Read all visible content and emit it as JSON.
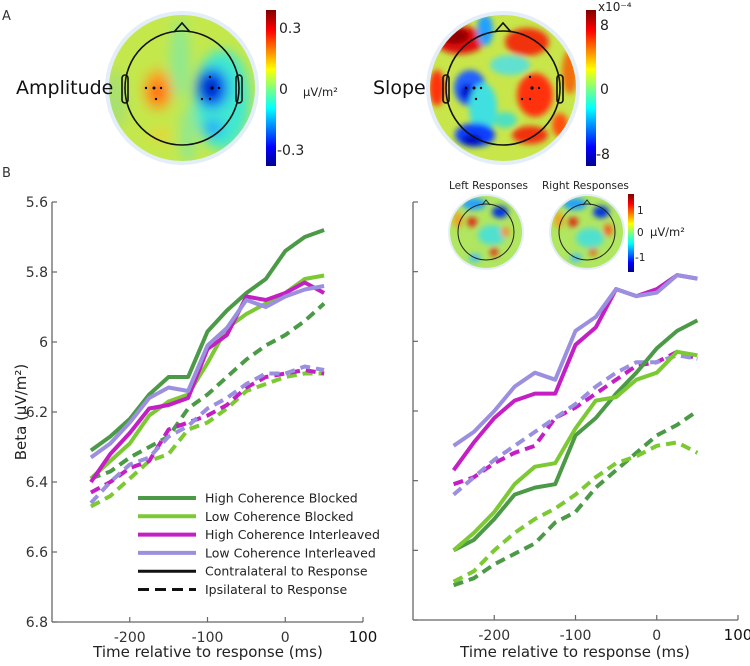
{
  "panels": {
    "a": "A",
    "b": "B"
  },
  "topomaps": [
    {
      "title": "Amplitude",
      "cbar_ticks": [
        "0.3",
        "0",
        "-0.3"
      ],
      "unit": "μV/m²",
      "exponent": ""
    },
    {
      "title": "Slope",
      "cbar_ticks": [
        "8",
        "0",
        "-8"
      ],
      "unit": "",
      "exponent": "x10⁻⁴"
    }
  ],
  "inset": {
    "left_title": "Left Responses",
    "right_title": "Right Responses",
    "cbar_ticks": [
      "1",
      "0",
      "-1"
    ],
    "unit": "μV/m²"
  },
  "colors": {
    "high_blocked": "#4c9a48",
    "low_blocked": "#7cc934",
    "high_interleaved": "#c41fc4",
    "low_interleaved": "#9a90df"
  },
  "legend": [
    {
      "label": "High Coherence Blocked",
      "color": "#4c9a48",
      "style": "solid"
    },
    {
      "label": "Low Coherence Blocked",
      "color": "#7cc934",
      "style": "solid"
    },
    {
      "label": "High Coherence Interleaved",
      "color": "#c41fc4",
      "style": "solid"
    },
    {
      "label": "Low Coherence Interleaved",
      "color": "#9a90df",
      "style": "solid"
    },
    {
      "label": "Contralateral to Response",
      "color": "#111111",
      "style": "solid"
    },
    {
      "label": "Ipsilateral to Response",
      "color": "#111111",
      "style": "dashed"
    }
  ],
  "chart_data": [
    {
      "type": "line",
      "title": "",
      "xlabel": "Time relative to response (ms)",
      "ylabel": "Beta (μV/m²)",
      "xlim": [
        -300,
        100
      ],
      "ylim": [
        6.8,
        5.6
      ],
      "y_reversed": true,
      "xticks": [
        -200,
        -100,
        0,
        100
      ],
      "yticks": [
        5.6,
        5.8,
        6,
        6.2,
        6.4,
        6.6,
        6.8
      ],
      "ytick_labels": [
        "5.6",
        "5.8",
        "6",
        "6.2",
        "6.4",
        "6.6",
        "6.8"
      ],
      "xtick_labels": [
        "-200",
        "-100",
        "0",
        "100"
      ],
      "legend_placement": "bottom-center",
      "x": [
        -250,
        -225,
        -200,
        -175,
        -150,
        -125,
        -100,
        -75,
        -50,
        -25,
        0,
        25,
        50
      ],
      "series": [
        {
          "name": "High Coherence Blocked - Contralateral",
          "color": "#4c9a48",
          "style": "solid",
          "values": [
            6.31,
            6.27,
            6.22,
            6.15,
            6.1,
            6.1,
            5.97,
            5.91,
            5.86,
            5.82,
            5.74,
            5.7,
            5.68
          ]
        },
        {
          "name": "Low Coherence Blocked - Contralateral",
          "color": "#7cc934",
          "style": "solid",
          "values": [
            6.39,
            6.34,
            6.29,
            6.21,
            6.17,
            6.15,
            6.06,
            5.96,
            5.92,
            5.89,
            5.86,
            5.82,
            5.81
          ]
        },
        {
          "name": "High Coherence Interleaved - Contralateral",
          "color": "#c41fc4",
          "style": "solid",
          "values": [
            6.4,
            6.32,
            6.26,
            6.19,
            6.18,
            6.16,
            6.02,
            5.98,
            5.87,
            5.88,
            5.86,
            5.83,
            5.86
          ]
        },
        {
          "name": "Low Coherence Interleaved - Contralateral",
          "color": "#9a90df",
          "style": "solid",
          "values": [
            6.33,
            6.29,
            6.23,
            6.16,
            6.13,
            6.14,
            6.01,
            5.96,
            5.88,
            5.9,
            5.87,
            5.85,
            5.84
          ]
        },
        {
          "name": "High Coherence Blocked - Ipsilateral",
          "color": "#4c9a48",
          "style": "dashed",
          "values": [
            6.39,
            6.37,
            6.33,
            6.3,
            6.27,
            6.19,
            6.15,
            6.1,
            6.05,
            6.01,
            5.98,
            5.94,
            5.89
          ]
        },
        {
          "name": "Low Coherence Blocked - Ipsilateral",
          "color": "#7cc934",
          "style": "dashed",
          "values": [
            6.47,
            6.44,
            6.39,
            6.34,
            6.32,
            6.25,
            6.23,
            6.19,
            6.14,
            6.12,
            6.1,
            6.09,
            6.09
          ]
        },
        {
          "name": "High Coherence Interleaved - Ipsilateral",
          "color": "#c41fc4",
          "style": "dashed",
          "values": [
            6.43,
            6.4,
            6.36,
            6.34,
            6.25,
            6.23,
            6.21,
            6.18,
            6.13,
            6.1,
            6.09,
            6.08,
            6.09
          ]
        },
        {
          "name": "Low Coherence Interleaved - Ipsilateral",
          "color": "#9a90df",
          "style": "dashed",
          "values": [
            6.46,
            6.4,
            6.35,
            6.33,
            6.27,
            6.24,
            6.19,
            6.16,
            6.12,
            6.09,
            6.09,
            6.07,
            6.08
          ]
        }
      ]
    },
    {
      "type": "line",
      "title": "",
      "xlabel": "Time relative to response (ms)",
      "ylabel": "",
      "xlim": [
        -300,
        100
      ],
      "ylim": [
        6.8,
        5.6
      ],
      "y_reversed": true,
      "xticks": [
        -200,
        -100,
        0,
        100
      ],
      "yticks": [
        5.6,
        5.8,
        6,
        6.2,
        6.4,
        6.6,
        6.8
      ],
      "ytick_labels": [],
      "xtick_labels": [
        "-200",
        "-100",
        "0",
        "100"
      ],
      "x": [
        -250,
        -225,
        -200,
        -175,
        -150,
        -125,
        -100,
        -75,
        -50,
        -25,
        0,
        25,
        50
      ],
      "series": [
        {
          "name": "High Coherence Blocked - Contralateral",
          "color": "#4c9a48",
          "style": "solid",
          "values": [
            6.6,
            6.57,
            6.51,
            6.44,
            6.42,
            6.41,
            6.27,
            6.22,
            6.15,
            6.09,
            6.02,
            5.97,
            5.94
          ]
        },
        {
          "name": "Low Coherence Blocked - Contralateral",
          "color": "#7cc934",
          "style": "solid",
          "values": [
            6.6,
            6.55,
            6.49,
            6.41,
            6.36,
            6.35,
            6.25,
            6.17,
            6.16,
            6.11,
            6.09,
            6.03,
            6.04
          ]
        },
        {
          "name": "High Coherence Interleaved - Contralateral",
          "color": "#c41fc4",
          "style": "solid",
          "values": [
            6.37,
            6.29,
            6.22,
            6.17,
            6.15,
            6.15,
            6.01,
            5.96,
            5.85,
            5.87,
            5.85,
            5.81,
            5.82
          ]
        },
        {
          "name": "Low Coherence Interleaved - Contralateral",
          "color": "#9a90df",
          "style": "solid",
          "values": [
            6.3,
            6.26,
            6.2,
            6.13,
            6.09,
            6.11,
            5.97,
            5.93,
            5.85,
            5.87,
            5.86,
            5.81,
            5.82
          ]
        },
        {
          "name": "High Coherence Blocked - Ipsilateral",
          "color": "#4c9a48",
          "style": "dashed",
          "values": [
            6.7,
            6.68,
            6.64,
            6.61,
            6.58,
            6.52,
            6.49,
            6.42,
            6.37,
            6.32,
            6.27,
            6.24,
            6.2
          ]
        },
        {
          "name": "Low Coherence Blocked - Ipsilateral",
          "color": "#7cc934",
          "style": "dashed",
          "values": [
            6.69,
            6.66,
            6.6,
            6.55,
            6.51,
            6.48,
            6.44,
            6.39,
            6.35,
            6.33,
            6.3,
            6.29,
            6.32
          ]
        },
        {
          "name": "High Coherence Interleaved - Ipsilateral",
          "color": "#c41fc4",
          "style": "dashed",
          "values": [
            6.41,
            6.39,
            6.35,
            6.32,
            6.3,
            6.22,
            6.19,
            6.15,
            6.11,
            6.07,
            6.06,
            6.03,
            6.05
          ]
        },
        {
          "name": "Low Coherence Interleaved - Ipsilateral",
          "color": "#9a90df",
          "style": "dashed",
          "values": [
            6.44,
            6.39,
            6.34,
            6.3,
            6.26,
            6.22,
            6.18,
            6.13,
            6.09,
            6.06,
            6.06,
            6.04,
            6.05
          ]
        }
      ]
    }
  ]
}
